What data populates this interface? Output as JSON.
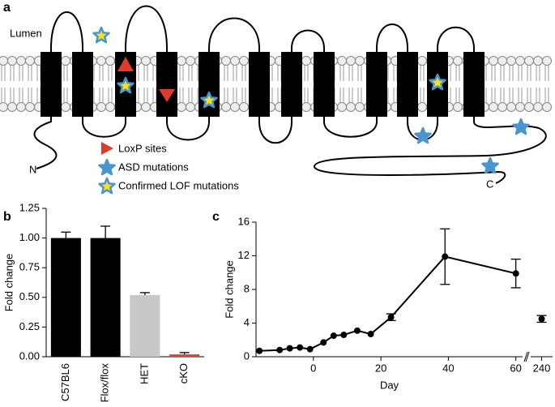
{
  "panel_labels": [
    "a",
    "b",
    "c"
  ],
  "diagram": {
    "lumen_label": "Lumen",
    "n_terminus": "N",
    "c_terminus": "C",
    "legend": [
      {
        "label": "LoxP sites"
      },
      {
        "label": "ASD mutations"
      },
      {
        "label": "Confirmed LOF mutations"
      }
    ]
  },
  "chart_data": [
    {
      "type": "bar",
      "ylabel": "Fold change",
      "categories": [
        "C57BL6",
        "Flox/flox",
        "HET",
        "cKO"
      ],
      "values": [
        1.0,
        1.0,
        0.52,
        0.02
      ],
      "errors": [
        0.05,
        0.1,
        0.02,
        0.015
      ],
      "colors": [
        "#000000",
        "#000000",
        "#c8c8c8",
        "#e0452a"
      ],
      "ylim": [
        0,
        1.25
      ],
      "yticks": [
        {
          "value": 0,
          "label": "0.00"
        },
        {
          "value": 0.25,
          "label": "0.25"
        },
        {
          "value": 0.5,
          "label": "0.50"
        },
        {
          "value": 0.75,
          "label": "0.75"
        },
        {
          "value": 1,
          "label": "1.00"
        },
        {
          "value": 1.25,
          "label": "1.25"
        }
      ]
    },
    {
      "type": "line",
      "xlabel": "Day",
      "ylabel": "Fold change",
      "x": [
        -16,
        -10,
        -7,
        -4,
        -1,
        3,
        6,
        9,
        13,
        17,
        23,
        39,
        60
      ],
      "values": [
        0.7,
        0.8,
        1.0,
        1.1,
        0.9,
        1.7,
        2.5,
        2.6,
        3.1,
        2.7,
        4.7,
        11.9,
        9.9
      ],
      "errors": [
        null,
        null,
        null,
        null,
        null,
        null,
        null,
        null,
        null,
        null,
        0.4,
        3.3,
        1.7
      ],
      "color": "#000000",
      "xlim": [
        -17,
        62
      ],
      "xticks": [
        0,
        20,
        40,
        60
      ],
      "ylim": [
        0,
        16
      ],
      "yticks": [
        0,
        4,
        8,
        12,
        16
      ]
    },
    {
      "type": "scatter",
      "x": [
        240
      ],
      "values": [
        4.5
      ],
      "errors": [
        0.4
      ],
      "color": "#000000",
      "xlim": [
        236,
        244
      ],
      "xticks": [
        240
      ],
      "ylim": [
        0,
        16
      ]
    }
  ]
}
